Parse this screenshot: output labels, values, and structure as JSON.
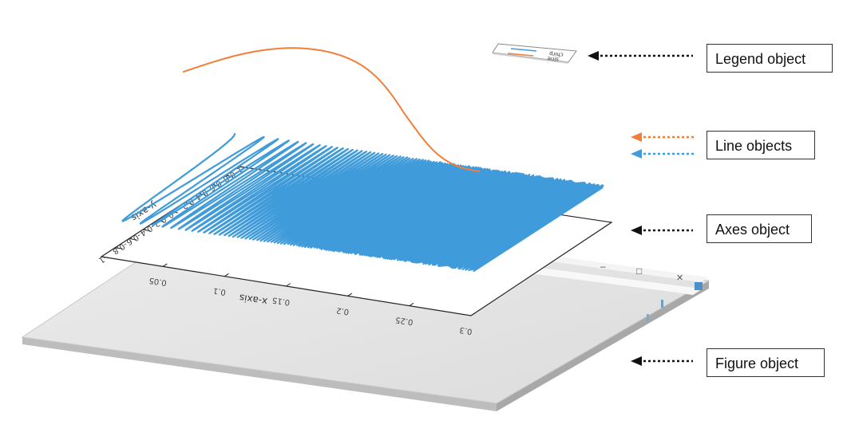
{
  "labels": {
    "legend": "Legend object",
    "lines": "Line objects",
    "axes": "Axes object",
    "figure": "Figure object"
  },
  "axes": {
    "xlabel": "x-axis",
    "ylabel": "y-axis",
    "x_ticks": [
      "0.05",
      "0.1",
      "0.15",
      "0.2",
      "0.25",
      "0.3"
    ],
    "y_ticks": [
      "-1",
      "-0.8",
      "-0.6",
      "-0.4",
      "-0.2",
      "0",
      "0.2",
      "0.4",
      "0.6",
      "0.8",
      "1"
    ],
    "xlim": [
      0,
      0.3
    ],
    "ylim": [
      -1,
      1
    ]
  },
  "legend": {
    "entries": [
      {
        "name": "chirp",
        "color": "#3f9bd9"
      },
      {
        "name": "sine",
        "color": "#f07f3c"
      }
    ]
  },
  "figure_window": {
    "minimize": "–",
    "maximize": "□",
    "close": "✕"
  },
  "colors": {
    "chirp": "#3f9bd9",
    "sine": "#f07f3c",
    "arrow": "#111111",
    "figure": "#e6e6e6"
  },
  "chart_data": {
    "type": "line",
    "xlabel": "x-axis",
    "ylabel": "y-axis",
    "xlim": [
      0,
      0.3
    ],
    "ylim": [
      -1,
      1
    ],
    "series": [
      {
        "name": "chirp",
        "function": "chirp",
        "x": [
          0,
          0.3
        ]
      },
      {
        "name": "sine",
        "function": "sine",
        "x": [
          0,
          0.3
        ]
      }
    ]
  }
}
